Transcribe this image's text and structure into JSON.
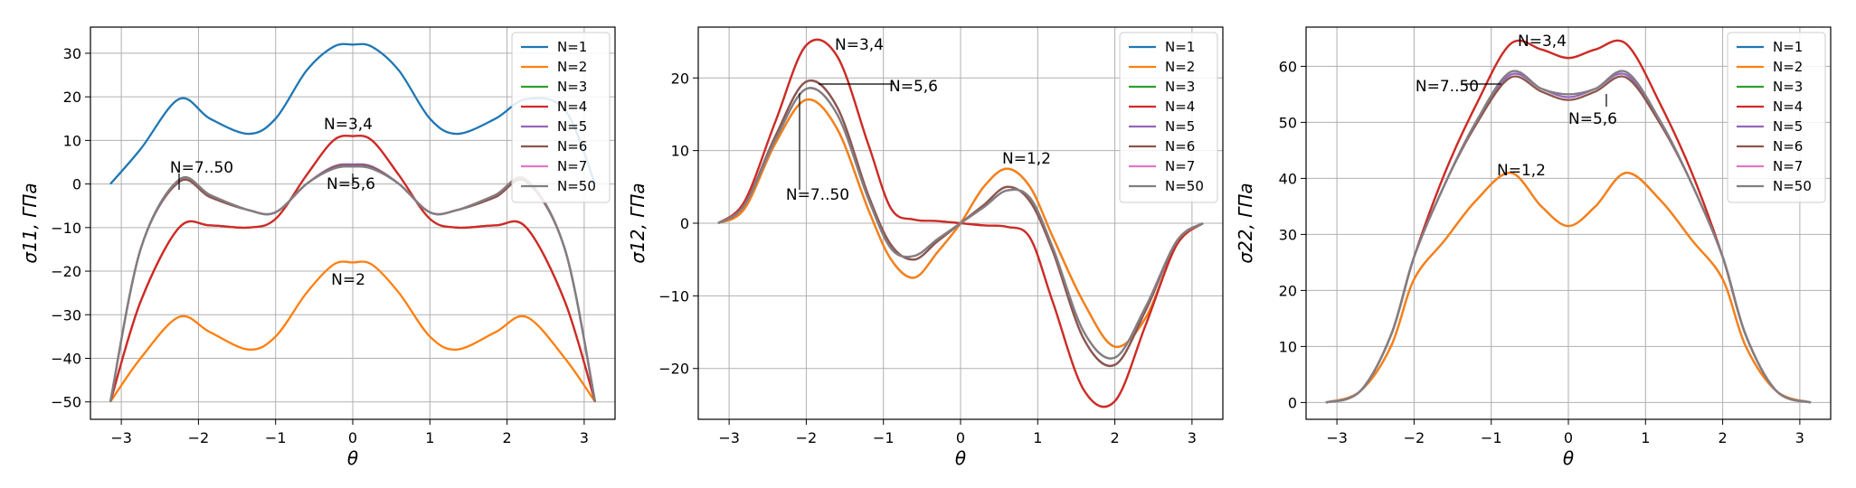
{
  "chart_data": [
    {
      "type": "line",
      "ylabel": "σ11, ГПа",
      "xlabel": "θ",
      "xlim": [
        -3.4,
        3.4
      ],
      "ylim": [
        -54,
        36
      ],
      "xticks": [
        -3,
        -2,
        -1,
        0,
        1,
        2,
        3
      ],
      "yticks": [
        -50,
        -40,
        -30,
        -20,
        -10,
        0,
        10,
        20,
        30
      ],
      "x": [
        -3.1416,
        -2.75,
        -2.25,
        -1.85,
        -1.35,
        -1.0,
        -0.6,
        -0.25,
        0,
        0.25,
        0.6,
        1.0,
        1.35,
        1.85,
        2.25,
        2.75,
        3.1416
      ],
      "series": [
        {
          "name": "N=1",
          "color": "#1f77b4",
          "values": [
            0,
            8,
            19.5,
            15,
            11.5,
            15,
            26,
            31.5,
            32,
            31.5,
            26,
            15,
            11.5,
            15,
            19.5,
            17,
            0
          ]
        },
        {
          "name": "N=2",
          "color": "#ff7f0e",
          "values": [
            -50,
            -40,
            -30.5,
            -34,
            -38,
            -35,
            -25,
            -18.5,
            -18,
            -18.5,
            -25,
            -35,
            -38,
            -34,
            -30.5,
            -40,
            -50
          ]
        },
        {
          "name": "N=3",
          "color": "#2ca02c",
          "values": [
            -50,
            -27,
            -10,
            -9.5,
            -10,
            -8,
            2,
            10,
            11,
            10,
            2,
            -8,
            -10,
            -9.5,
            -10,
            -27,
            -50
          ]
        },
        {
          "name": "N=4",
          "color": "#d62728",
          "values": [
            -50,
            -27,
            -10,
            -9.5,
            -10,
            -8,
            2,
            10,
            11,
            10,
            2,
            -8,
            -10,
            -9.5,
            -10,
            -27,
            -50
          ]
        },
        {
          "name": "N=5",
          "color": "#9467bd",
          "values": [
            -50,
            -15,
            0.5,
            -3,
            -6,
            -6.5,
            0,
            4,
            4.5,
            4,
            0,
            -6.5,
            -6,
            -3,
            0.5,
            -15,
            -50
          ]
        },
        {
          "name": "N=6",
          "color": "#8c564b",
          "values": [
            -50,
            -15,
            0.5,
            -3,
            -6,
            -6.5,
            0,
            3.8,
            4.2,
            3.8,
            0,
            -6.5,
            -6,
            -3,
            0.5,
            -15,
            -50
          ]
        },
        {
          "name": "N=7",
          "color": "#e377c2",
          "values": [
            -50,
            -15,
            1,
            -2.5,
            -6,
            -6.5,
            0,
            3.5,
            4,
            3.5,
            0,
            -6.5,
            -6,
            -2.5,
            1,
            -15,
            -50
          ]
        },
        {
          "name": "N=50",
          "color": "#7f7f7f",
          "values": [
            -50,
            -15,
            1,
            -2.5,
            -6,
            -6.5,
            0,
            3.5,
            4,
            3.5,
            0,
            -6.5,
            -6,
            -2.5,
            1,
            -15,
            -50
          ]
        }
      ],
      "annotations": [
        "N=3,4",
        "N=5,6",
        "N=7..50",
        "N=2"
      ],
      "legend": "top-right",
      "grid": true
    },
    {
      "type": "line",
      "ylabel": "σ12, ГПа",
      "xlabel": "θ",
      "xlim": [
        -3.4,
        3.4
      ],
      "ylim": [
        -27,
        27
      ],
      "xticks": [
        -3,
        -2,
        -1,
        0,
        1,
        2,
        3
      ],
      "yticks": [
        -20,
        -10,
        0,
        10,
        20
      ],
      "x": [
        -3.1416,
        -2.8,
        -2.4,
        -2.0,
        -1.6,
        -1.2,
        -0.9,
        -0.6,
        -0.3,
        0,
        0.3,
        0.6,
        0.9,
        1.2,
        1.6,
        2.0,
        2.4,
        2.8,
        3.1416
      ],
      "series": [
        {
          "name": "N=1",
          "color": "#1f77b4",
          "values": [
            0,
            2,
            11,
            17,
            13,
            2,
            -5,
            -7.5,
            -4,
            0,
            5,
            7.5,
            5,
            -2,
            -11,
            -17,
            -13,
            -3,
            0
          ]
        },
        {
          "name": "N=2",
          "color": "#ff7f0e",
          "values": [
            0,
            2,
            11,
            17,
            13,
            2,
            -5,
            -7.5,
            -4,
            0,
            5,
            7.5,
            5,
            -2,
            -11,
            -17,
            -13,
            -3,
            0
          ]
        },
        {
          "name": "N=3",
          "color": "#2ca02c",
          "values": [
            0,
            3,
            14,
            24.5,
            23,
            11,
            2,
            0.5,
            0.3,
            0,
            -0.3,
            -0.5,
            -2,
            -11,
            -23,
            -24.5,
            -14,
            -3,
            0
          ]
        },
        {
          "name": "N=4",
          "color": "#d62728",
          "values": [
            0,
            3,
            14,
            24.5,
            23,
            11,
            2,
            0.5,
            0.3,
            0,
            -0.3,
            -0.5,
            -2,
            -11,
            -23,
            -24.5,
            -14,
            -3,
            0
          ]
        },
        {
          "name": "N=5",
          "color": "#9467bd",
          "values": [
            0,
            2.5,
            12,
            19.5,
            16,
            4,
            -3,
            -5,
            -2.5,
            0,
            2.5,
            5,
            3,
            -4,
            -16,
            -19.5,
            -12,
            -2.5,
            0
          ]
        },
        {
          "name": "N=6",
          "color": "#8c564b",
          "values": [
            0,
            2.5,
            12,
            19.5,
            16,
            4,
            -3,
            -5,
            -2.5,
            0,
            2.5,
            5,
            3,
            -4,
            -16,
            -19.5,
            -12,
            -2.5,
            0
          ]
        },
        {
          "name": "N=7",
          "color": "#e377c2",
          "values": [
            0,
            2.5,
            11.5,
            18.5,
            15,
            3.5,
            -3.5,
            -4.5,
            -2.2,
            0,
            2.2,
            4.5,
            3.5,
            -3.5,
            -15,
            -18.5,
            -11.5,
            -2.5,
            0
          ]
        },
        {
          "name": "N=50",
          "color": "#7f7f7f",
          "values": [
            0,
            2.5,
            11.5,
            18.5,
            15,
            3.5,
            -3.5,
            -4.5,
            -2.2,
            0,
            2.2,
            4.5,
            3.5,
            -3.5,
            -15,
            -18.5,
            -11.5,
            -2.5,
            0
          ]
        }
      ],
      "annotations": [
        "N=3,4",
        "N=5,6",
        "N=7..50",
        "N=1,2"
      ],
      "legend": "top-right",
      "grid": true
    },
    {
      "type": "line",
      "ylabel": "σ22, ГПа",
      "xlabel": "θ",
      "xlim": [
        -3.4,
        3.4
      ],
      "ylim": [
        -3,
        67
      ],
      "xticks": [
        -3,
        -2,
        -1,
        0,
        1,
        2,
        3
      ],
      "yticks": [
        0,
        10,
        20,
        30,
        40,
        50,
        60
      ],
      "x": [
        -3.1416,
        -2.7,
        -2.3,
        -2.0,
        -1.6,
        -1.2,
        -0.75,
        -0.35,
        0,
        0.35,
        0.75,
        1.2,
        1.6,
        2.0,
        2.3,
        2.7,
        3.1416
      ],
      "series": [
        {
          "name": "N=1",
          "color": "#1f77b4",
          "values": [
            0,
            2,
            10,
            22,
            29,
            36,
            41,
            35,
            31.5,
            35,
            41,
            36,
            29,
            22,
            10,
            2,
            0
          ]
        },
        {
          "name": "N=2",
          "color": "#ff7f0e",
          "values": [
            0,
            2,
            10,
            22,
            29,
            36,
            41,
            35,
            31.5,
            35,
            41,
            36,
            29,
            22,
            10,
            2,
            0
          ]
        },
        {
          "name": "N=3",
          "color": "#2ca02c",
          "values": [
            0,
            2,
            12,
            26,
            41,
            53,
            64,
            63,
            61.5,
            63,
            64,
            53,
            41,
            26,
            12,
            2,
            0
          ]
        },
        {
          "name": "N=4",
          "color": "#d62728",
          "values": [
            0,
            2,
            12,
            26,
            41,
            53,
            64,
            63,
            61.5,
            63,
            64,
            53,
            41,
            26,
            12,
            2,
            0
          ]
        },
        {
          "name": "N=5",
          "color": "#9467bd",
          "values": [
            0,
            2,
            12,
            26,
            39,
            50,
            58.5,
            56,
            54.5,
            56,
            58.5,
            50,
            39,
            26,
            12,
            2,
            0
          ]
        },
        {
          "name": "N=6",
          "color": "#8c564b",
          "values": [
            0,
            2,
            12,
            26,
            39,
            49.5,
            58,
            55.5,
            54,
            55.5,
            58,
            49.5,
            39,
            26,
            12,
            2,
            0
          ]
        },
        {
          "name": "N=7",
          "color": "#e377c2",
          "values": [
            0,
            2,
            12,
            26,
            39,
            50,
            59,
            56,
            55,
            56,
            59,
            50,
            39,
            26,
            12,
            2,
            0
          ]
        },
        {
          "name": "N=50",
          "color": "#7f7f7f",
          "values": [
            0,
            2,
            12,
            26,
            39,
            50,
            59,
            56,
            55,
            56,
            59,
            50,
            39,
            26,
            12,
            2,
            0
          ]
        }
      ],
      "annotations": [
        "N=3,4",
        "N=7..50",
        "N=5,6",
        "N=1,2"
      ],
      "legend": "top-right",
      "grid": true
    }
  ]
}
